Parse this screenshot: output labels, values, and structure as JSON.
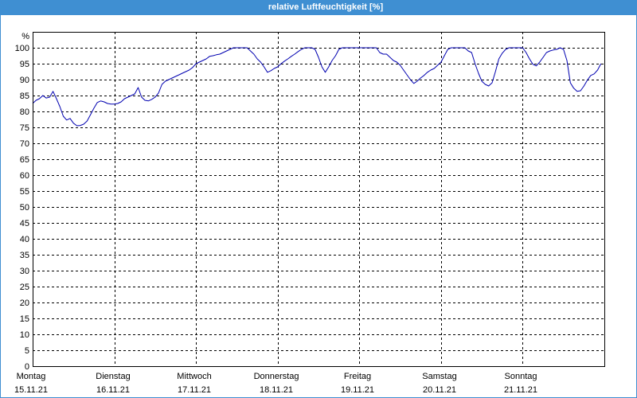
{
  "colors": {
    "title_bar": "#3f8fd2",
    "title_text": "#ffffff",
    "plot_background": "#ffffff",
    "grid": "#000000",
    "line": "#0000b0"
  },
  "chart_data": {
    "type": "line",
    "title": "relative Luftfeuchtigkeit [%]",
    "ylabel": "%",
    "ylim": [
      0,
      105
    ],
    "xlim": [
      "15.11.21 00:00",
      "22.11.21 00:00"
    ],
    "grid": true,
    "y_ticks": [
      0,
      5,
      10,
      15,
      20,
      25,
      30,
      35,
      40,
      45,
      50,
      55,
      60,
      65,
      70,
      75,
      80,
      85,
      90,
      95,
      100
    ],
    "x_ticks": [
      {
        "day": "Montag",
        "date": "15.11.21"
      },
      {
        "day": "Dienstag",
        "date": "16.11.21"
      },
      {
        "day": "Mittwoch",
        "date": "17.11.21"
      },
      {
        "day": "Donnerstag",
        "date": "18.11.21"
      },
      {
        "day": "Freitag",
        "date": "19.11.21"
      },
      {
        "day": "Samstag",
        "date": "20.11.21"
      },
      {
        "day": "Sonntag",
        "date": "21.11.21"
      }
    ],
    "series": [
      {
        "x": [
          "15.11.21 00:00",
          "15.11.21 01:00",
          "15.11.21 02:00",
          "15.11.21 03:00",
          "15.11.21 04:00",
          "15.11.21 05:00",
          "15.11.21 06:00",
          "15.11.21 07:00",
          "15.11.21 08:00",
          "15.11.21 09:00",
          "15.11.21 10:00",
          "15.11.21 11:00",
          "15.11.21 12:00",
          "15.11.21 13:00",
          "15.11.21 14:00",
          "15.11.21 15:00",
          "15.11.21 16:00",
          "15.11.21 17:00",
          "15.11.21 18:00",
          "15.11.21 19:00",
          "15.11.21 20:00",
          "15.11.21 21:00",
          "15.11.21 22:00",
          "15.11.21 23:00",
          "16.11.21 00:00",
          "16.11.21 01:00",
          "16.11.21 02:00",
          "16.11.21 03:00",
          "16.11.21 04:00",
          "16.11.21 05:00",
          "16.11.21 06:00",
          "16.11.21 07:00",
          "16.11.21 08:00",
          "16.11.21 09:00",
          "16.11.21 10:00",
          "16.11.21 11:00",
          "16.11.21 12:00",
          "16.11.21 13:00",
          "16.11.21 14:00",
          "16.11.21 15:00",
          "16.11.21 16:00",
          "16.11.21 17:00",
          "16.11.21 18:00",
          "16.11.21 19:00",
          "16.11.21 20:00",
          "16.11.21 21:00",
          "16.11.21 22:00",
          "16.11.21 23:00",
          "17.11.21 00:00",
          "17.11.21 01:00",
          "17.11.21 02:00",
          "17.11.21 03:00",
          "17.11.21 04:00",
          "17.11.21 05:00",
          "17.11.21 06:00",
          "17.11.21 07:00",
          "17.11.21 08:00",
          "17.11.21 09:00",
          "17.11.21 10:00",
          "17.11.21 11:00",
          "17.11.21 12:00",
          "17.11.21 13:00",
          "17.11.21 14:00",
          "17.11.21 15:00",
          "17.11.21 16:00",
          "17.11.21 17:00",
          "17.11.21 18:00",
          "17.11.21 19:00",
          "17.11.21 20:00",
          "17.11.21 21:00",
          "17.11.21 22:00",
          "17.11.21 23:00",
          "18.11.21 00:00",
          "18.11.21 01:00",
          "18.11.21 02:00",
          "18.11.21 03:00",
          "18.11.21 04:00",
          "18.11.21 05:00",
          "18.11.21 06:00",
          "18.11.21 07:00",
          "18.11.21 08:00",
          "18.11.21 09:00",
          "18.11.21 10:00",
          "18.11.21 11:00",
          "18.11.21 12:00",
          "18.11.21 13:00",
          "18.11.21 14:00",
          "18.11.21 15:00",
          "18.11.21 16:00",
          "18.11.21 17:00",
          "18.11.21 18:00",
          "18.11.21 19:00",
          "18.11.21 20:00",
          "18.11.21 21:00",
          "18.11.21 22:00",
          "18.11.21 23:00",
          "19.11.21 00:00",
          "19.11.21 01:00",
          "19.11.21 02:00",
          "19.11.21 03:00",
          "19.11.21 04:00",
          "19.11.21 05:00",
          "19.11.21 06:00",
          "19.11.21 07:00",
          "19.11.21 08:00",
          "19.11.21 09:00",
          "19.11.21 10:00",
          "19.11.21 11:00",
          "19.11.21 12:00",
          "19.11.21 13:00",
          "19.11.21 14:00",
          "19.11.21 15:00",
          "19.11.21 16:00",
          "19.11.21 17:00",
          "19.11.21 18:00",
          "19.11.21 19:00",
          "19.11.21 20:00",
          "19.11.21 21:00",
          "19.11.21 22:00",
          "19.11.21 23:00",
          "20.11.21 00:00",
          "20.11.21 01:00",
          "20.11.21 02:00",
          "20.11.21 03:00",
          "20.11.21 04:00",
          "20.11.21 05:00",
          "20.11.21 06:00",
          "20.11.21 07:00",
          "20.11.21 08:00",
          "20.11.21 09:00",
          "20.11.21 10:00",
          "20.11.21 11:00",
          "20.11.21 12:00",
          "20.11.21 13:00",
          "20.11.21 14:00",
          "20.11.21 15:00",
          "20.11.21 16:00",
          "20.11.21 17:00",
          "20.11.21 18:00",
          "20.11.21 19:00",
          "20.11.21 20:00",
          "20.11.21 21:00",
          "20.11.21 22:00",
          "20.11.21 23:00",
          "21.11.21 00:00",
          "21.11.21 01:00",
          "21.11.21 02:00",
          "21.11.21 03:00",
          "21.11.21 04:00",
          "21.11.21 05:00",
          "21.11.21 06:00",
          "21.11.21 07:00",
          "21.11.21 08:00",
          "21.11.21 09:00",
          "21.11.21 10:00",
          "21.11.21 11:00",
          "21.11.21 12:00",
          "21.11.21 13:00",
          "21.11.21 14:00",
          "21.11.21 15:00",
          "21.11.21 16:00",
          "21.11.21 17:00",
          "21.11.21 18:00",
          "21.11.21 19:00",
          "21.11.21 20:00",
          "21.11.21 21:00",
          "21.11.21 22:00",
          "21.11.21 23:00"
        ],
        "y": [
          82.5,
          83.5,
          84,
          85,
          84.2,
          84.5,
          86.3,
          84,
          81.5,
          78.5,
          77.3,
          77.8,
          76.3,
          75.5,
          75.6,
          76,
          77,
          79,
          81,
          82.8,
          83.3,
          83,
          82.5,
          82.3,
          82.3,
          82.5,
          83,
          84,
          84.5,
          85,
          85.5,
          87.5,
          84.5,
          83.5,
          83.3,
          83.8,
          84.5,
          85.8,
          88.5,
          89.5,
          90,
          90.5,
          91,
          91.5,
          92,
          92.5,
          93,
          93.8,
          95,
          95.5,
          96,
          96.5,
          97.3,
          97.5,
          97.8,
          98,
          98.5,
          99,
          99.5,
          100,
          100,
          100,
          100,
          100,
          99,
          98,
          96.5,
          95.5,
          94,
          92.3,
          92.8,
          93.5,
          94,
          95,
          95.8,
          96.5,
          97.3,
          98,
          98.8,
          99.5,
          100,
          100,
          100,
          99.5,
          97,
          94,
          92.3,
          94,
          96,
          97.5,
          99.5,
          100,
          100,
          100,
          100,
          100,
          100,
          100,
          100,
          100,
          100,
          100,
          98.5,
          98,
          98,
          97,
          96,
          95.5,
          94.5,
          93,
          91.5,
          90,
          88.8,
          89.5,
          90.5,
          91.3,
          92.3,
          93,
          93.5,
          94.5,
          95.5,
          97.5,
          99.5,
          100,
          100,
          100,
          100,
          100,
          99,
          98.5,
          95,
          92,
          89.5,
          88.5,
          88,
          89,
          92.5,
          96.5,
          98.3,
          99.5,
          100,
          100,
          100,
          100,
          100,
          98.5,
          96.5,
          94.8,
          94.3,
          95.5,
          97,
          98.5,
          99,
          99.3,
          99.5,
          100,
          99.5,
          96,
          89,
          87.3,
          86.3,
          86.5,
          88,
          89.8,
          91.3,
          91.8,
          93,
          95
        ]
      }
    ]
  }
}
